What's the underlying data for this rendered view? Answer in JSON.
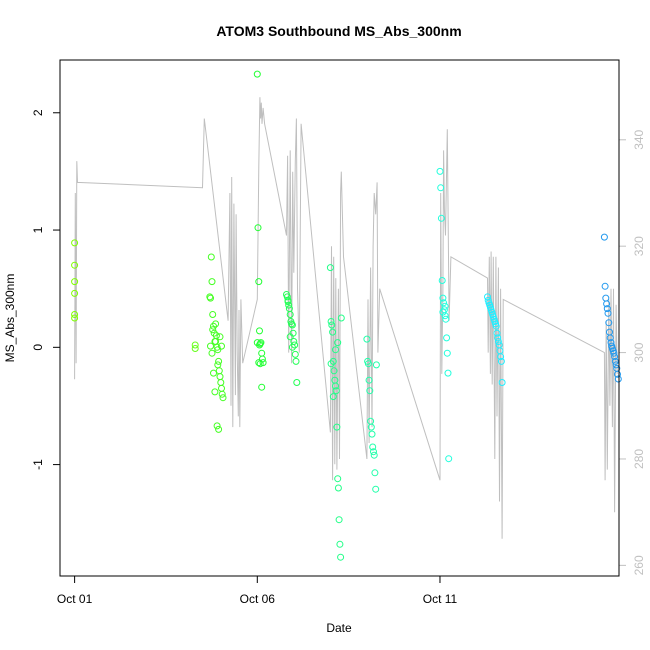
{
  "chart_data": {
    "type": "scatter",
    "title": "ATOM3 Southbound MS_Abs_300nm",
    "xlabel": "Date",
    "ylabel": "MS_Abs_300nm",
    "x_ticks": [
      {
        "value": 1,
        "label": "Oct 01"
      },
      {
        "value": 6,
        "label": "Oct 06"
      },
      {
        "value": 11,
        "label": "Oct 11"
      }
    ],
    "xlim": [
      0.6,
      15.9
    ],
    "ylim": [
      -1.95,
      2.45
    ],
    "y_ticks": [
      {
        "value": -1,
        "label": "-1"
      },
      {
        "value": 0,
        "label": "0"
      },
      {
        "value": 1,
        "label": "1"
      },
      {
        "value": 2,
        "label": "2"
      }
    ],
    "y2lim": [
      258,
      355
    ],
    "y2_ticks": [
      {
        "value": 260,
        "label": "260"
      },
      {
        "value": 280,
        "label": "280"
      },
      {
        "value": 300,
        "label": "300"
      },
      {
        "value": 320,
        "label": "320"
      },
      {
        "value": 340,
        "label": "340"
      }
    ],
    "secondary_series_color": "#bfbfbf",
    "secondary_trace": [
      [
        1.0,
        295
      ],
      [
        1.02,
        330
      ],
      [
        1.04,
        298
      ],
      [
        1.06,
        336
      ],
      [
        1.08,
        332
      ],
      [
        4.5,
        331
      ],
      [
        4.55,
        344
      ],
      [
        5.2,
        306
      ],
      [
        5.25,
        330
      ],
      [
        5.28,
        290
      ],
      [
        5.3,
        333
      ],
      [
        5.33,
        286
      ],
      [
        5.36,
        328
      ],
      [
        5.4,
        292
      ],
      [
        5.42,
        326
      ],
      [
        5.45,
        300
      ],
      [
        5.48,
        288
      ],
      [
        5.5,
        308
      ],
      [
        5.52,
        286
      ],
      [
        5.55,
        310
      ],
      [
        5.6,
        298
      ],
      [
        6.0,
        310
      ],
      [
        6.04,
        335
      ],
      [
        6.07,
        348
      ],
      [
        6.09,
        344
      ],
      [
        6.11,
        347
      ],
      [
        6.13,
        343
      ],
      [
        6.16,
        346
      ],
      [
        6.2,
        343
      ],
      [
        6.8,
        322
      ],
      [
        6.83,
        337
      ],
      [
        6.86,
        300
      ],
      [
        6.9,
        338
      ],
      [
        6.94,
        298
      ],
      [
        6.97,
        334
      ],
      [
        7.0,
        315
      ],
      [
        7.04,
        336
      ],
      [
        7.07,
        344
      ],
      [
        7.1,
        312
      ],
      [
        7.15,
        300
      ],
      [
        7.2,
        343
      ],
      [
        8.0,
        285
      ],
      [
        8.03,
        320
      ],
      [
        8.06,
        276
      ],
      [
        8.09,
        318
      ],
      [
        8.12,
        279
      ],
      [
        8.15,
        314
      ],
      [
        8.18,
        278
      ],
      [
        8.22,
        312
      ],
      [
        8.25,
        280
      ],
      [
        8.28,
        330
      ],
      [
        8.3,
        334
      ],
      [
        8.33,
        326
      ],
      [
        8.36,
        318
      ],
      [
        9.0,
        280
      ],
      [
        9.03,
        310
      ],
      [
        9.06,
        283
      ],
      [
        9.1,
        316
      ],
      [
        9.14,
        286
      ],
      [
        9.17,
        320
      ],
      [
        9.2,
        330
      ],
      [
        9.24,
        326
      ],
      [
        9.28,
        332
      ],
      [
        9.3,
        300
      ],
      [
        9.35,
        312
      ],
      [
        11.0,
        276
      ],
      [
        11.02,
        330
      ],
      [
        11.05,
        296
      ],
      [
        11.08,
        312
      ],
      [
        11.1,
        338
      ],
      [
        11.12,
        327
      ],
      [
        11.15,
        322
      ],
      [
        11.2,
        342
      ],
      [
        11.25,
        306
      ],
      [
        11.3,
        318
      ],
      [
        12.3,
        314
      ],
      [
        12.32,
        300
      ],
      [
        12.35,
        318
      ],
      [
        12.38,
        296
      ],
      [
        12.4,
        319
      ],
      [
        12.43,
        294
      ],
      [
        12.46,
        318
      ],
      [
        12.5,
        280
      ],
      [
        12.53,
        318
      ],
      [
        12.56,
        288
      ],
      [
        12.6,
        316
      ],
      [
        12.63,
        272
      ],
      [
        12.66,
        312
      ],
      [
        12.7,
        265
      ],
      [
        12.73,
        310
      ],
      [
        15.5,
        300
      ],
      [
        15.52,
        276
      ],
      [
        15.55,
        306
      ],
      [
        15.58,
        278
      ],
      [
        15.62,
        310
      ],
      [
        15.65,
        290
      ],
      [
        15.68,
        312
      ],
      [
        15.72,
        286
      ],
      [
        15.75,
        312
      ],
      [
        15.78,
        270
      ],
      [
        15.82,
        309
      ],
      [
        15.85,
        296
      ]
    ],
    "series": [
      {
        "color": "#7fff00",
        "x": [
          1.0,
          1.0,
          1.0,
          1.0,
          1.0,
          1.0
        ],
        "y": [
          0.89,
          0.7,
          0.56,
          0.46,
          0.25,
          0.28
        ]
      },
      {
        "color": "#66ff1a",
        "x": [
          4.3,
          4.3
        ],
        "y": [
          0.02,
          -0.01
        ]
      },
      {
        "color": "#44ff22",
        "x": [
          4.7,
          4.72,
          4.74,
          4.76,
          4.78,
          4.8,
          4.82,
          4.84,
          4.86,
          4.88,
          4.9,
          4.92,
          4.94,
          4.96,
          4.98,
          5.0,
          5.02,
          5.04,
          5.06,
          4.72,
          4.76,
          4.8,
          4.84,
          4.9,
          4.94,
          4.98,
          5.02,
          4.78,
          4.86,
          4.92
        ],
        "y": [
          0.43,
          0.42,
          0.77,
          0.56,
          0.28,
          0.18,
          0.12,
          0.05,
          0.2,
          0.1,
          0.0,
          -0.02,
          -0.12,
          -0.2,
          -0.25,
          -0.3,
          -0.35,
          -0.4,
          -0.43,
          0.01,
          -0.05,
          -0.22,
          -0.38,
          -0.67,
          -0.7,
          0.09,
          0.01,
          0.15,
          0.05,
          -0.15
        ]
      },
      {
        "color": "#22ff33",
        "x": [
          6.0,
          6.02,
          6.04,
          6.06,
          6.08,
          6.1,
          6.12,
          6.14,
          6.16,
          6.04,
          6.08,
          6.12,
          6.0,
          6.06
        ],
        "y": [
          2.33,
          1.02,
          0.56,
          0.14,
          0.03,
          0.04,
          -0.05,
          -0.1,
          -0.13,
          -0.13,
          -0.14,
          -0.34,
          0.04,
          0.02
        ]
      },
      {
        "color": "#22ff55",
        "x": [
          6.8,
          6.82,
          6.84,
          6.86,
          6.88,
          6.9,
          6.92,
          6.94,
          6.96,
          6.98,
          7.0,
          7.02,
          7.04,
          7.06,
          7.08,
          6.84,
          6.9,
          6.96
        ],
        "y": [
          0.45,
          0.43,
          0.39,
          0.36,
          0.33,
          0.28,
          0.22,
          0.2,
          0.19,
          0.12,
          0.05,
          0.02,
          -0.06,
          -0.12,
          -0.3,
          0.4,
          0.09,
          0.0
        ]
      },
      {
        "color": "#22ff88",
        "x": [
          8.0,
          8.02,
          8.04,
          8.06,
          8.08,
          8.1,
          8.12,
          8.14,
          8.16,
          8.18,
          8.2,
          8.22,
          8.24,
          8.26,
          8.28,
          8.3,
          8.02,
          8.08,
          8.14,
          8.2
        ],
        "y": [
          0.68,
          0.22,
          0.19,
          0.13,
          -0.12,
          -0.2,
          -0.28,
          -0.33,
          -0.37,
          -0.68,
          -1.12,
          -1.2,
          -1.47,
          -1.68,
          -1.79,
          0.25,
          -0.14,
          -0.42,
          -0.02,
          0.04
        ]
      },
      {
        "color": "#22ffaa",
        "x": [
          9.0,
          9.02,
          9.04,
          9.06,
          9.08,
          9.1,
          9.12,
          9.14,
          9.16,
          9.18,
          9.2,
          9.22,
          9.24,
          9.26
        ],
        "y": [
          0.07,
          -0.12,
          -0.14,
          -0.28,
          -0.37,
          -0.63,
          -0.68,
          -0.74,
          -0.85,
          -0.89,
          -0.92,
          -1.07,
          -1.21,
          -0.15
        ]
      },
      {
        "color": "#22ffdd",
        "x": [
          11.0,
          11.02,
          11.04,
          11.06,
          11.08,
          11.1,
          11.12,
          11.14,
          11.16,
          11.18,
          11.2,
          11.22,
          11.24,
          11.08,
          11.14
        ],
        "y": [
          1.5,
          1.36,
          1.1,
          0.57,
          0.42,
          0.38,
          0.32,
          0.27,
          0.24,
          0.08,
          -0.05,
          -0.22,
          -0.95,
          0.3,
          0.35
        ]
      },
      {
        "color": "#22eeff",
        "x": [
          12.3,
          12.32,
          12.34,
          12.36,
          12.38,
          12.4,
          12.42,
          12.44,
          12.46,
          12.48,
          12.5,
          12.52,
          12.54,
          12.56,
          12.58,
          12.6,
          12.62,
          12.64,
          12.66,
          12.68,
          12.7
        ],
        "y": [
          0.43,
          0.4,
          0.38,
          0.36,
          0.34,
          0.32,
          0.3,
          0.28,
          0.26,
          0.24,
          0.22,
          0.2,
          0.18,
          0.12,
          0.08,
          0.05,
          0.02,
          -0.03,
          -0.08,
          -0.12,
          -0.3
        ]
      },
      {
        "color": "#2299ee",
        "x": [
          15.5,
          15.52,
          15.54,
          15.56,
          15.58,
          15.6,
          15.62,
          15.64,
          15.66,
          15.68,
          15.7,
          15.72,
          15.74,
          15.76,
          15.78,
          15.8,
          15.82,
          15.84,
          15.86,
          15.88
        ],
        "y": [
          0.94,
          0.52,
          0.42,
          0.37,
          0.33,
          0.29,
          0.21,
          0.13,
          0.08,
          0.04,
          0.01,
          -0.01,
          -0.03,
          -0.05,
          -0.08,
          -0.12,
          -0.15,
          -0.18,
          -0.23,
          -0.27
        ]
      }
    ]
  }
}
